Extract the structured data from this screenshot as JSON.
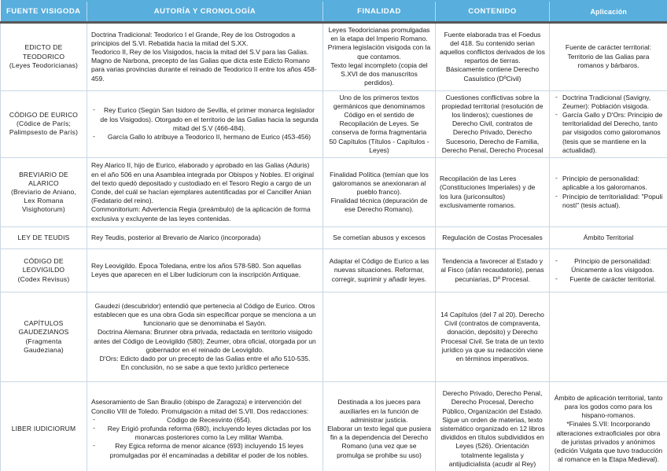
{
  "colors": {
    "header_bg": "#58aedc",
    "header_text": "#ffffff",
    "header_underline": "#58585a",
    "grid": "#c9d7e4"
  },
  "header": {
    "columns": [
      "FUENTE VISIGODA",
      "AUTORÍA Y CRONOLOGÍA",
      "FINALIDAD",
      "CONTENIDO",
      "Aplicación"
    ]
  },
  "rows": [
    {
      "id": "edicto-de-teodorico",
      "fuente": {
        "lines": [
          "EDICTO DE TEODORICO",
          "(Leyes Teodoricianas)"
        ]
      },
      "autoria": {
        "align": "left",
        "items": [
          {
            "text": "Doctrina Tradicional: Teodorico I el Grande, Rey de los Ostrogodos a principios del S.VI. Rebatida hacia la mitad del S.XX."
          },
          {
            "text": "Teodorico II, Rey de los Visigodos, hacia la mitad del S.V para las Galias."
          },
          {
            "text": "Magno de Narbona, precepto de las Galias que dicta este Edicto Romano para varias provincias durante el reinado de Teodorico II entre los años 458-459."
          }
        ]
      },
      "finalidad": {
        "align": "center",
        "items": [
          {
            "text": "Leyes Teodoricianas promulgadas en la etapa del Imperio Romano."
          },
          {
            "text": "Primera legislación visigoda con la que contamos."
          },
          {
            "text": "Texto legal incompleto (copia del S.XVI de dos manuscritos perdidos)."
          }
        ]
      },
      "contenido": {
        "align": "center",
        "items": [
          {
            "text": "Fuente elaborada tras el Foedus del 418. Su contenido serian aquellos conflictos derivados de los repartos de tierras."
          },
          {
            "text": "Básicamente contiene Derecho Casuístico (DºCivil)"
          }
        ]
      },
      "aplicacion": {
        "align": "center",
        "items": [
          {
            "text": "Fuente de carácter territorial: Territorio de las Galias para romanos y bárbaros."
          }
        ]
      }
    },
    {
      "id": "codigo-de-eurico",
      "fuente": {
        "lines": [
          "CÓDIGO DE EURICO",
          "(Códice de París; Palimpsesto de París)"
        ]
      },
      "autoria": {
        "align": "center",
        "items": [
          {
            "bullet": true,
            "text": "Rey Eurico (Según San Isidoro de Sevilla, el primer monarca legislador de los Visigodos). Otorgado en el territorio de las Galias hacia la segunda mitad del S.V (466-484)."
          },
          {
            "bullet": true,
            "text": "García Gallo lo atribuye a Teodorico II, hermano de Eurico (453-456)"
          }
        ]
      },
      "finalidad": {
        "align": "center",
        "items": [
          {
            "text": "Uno de los primeros textos germánicos que denominamos Código en el sentido de Recopilación de Leyes. Se conserva de forma fragmentaria 50 Capítulos (Títulos - Capítulos - Leyes)"
          }
        ]
      },
      "contenido": {
        "align": "center",
        "items": [
          {
            "text": "Cuestiones conflictivas sobre la propiedad territorial (resolución de los linderos); cuestiones de Derecho Civil, contratos de Derecho Privado, Derecho Sucesorio, Derecho de Familia, Derecho Penal, Derecho Procesal"
          }
        ]
      },
      "aplicacion": {
        "align": "left",
        "items": [
          {
            "bullet": true,
            "text": "Doctrina Tradicional (Savigny, Zeumer): Población visigoda."
          },
          {
            "bullet": true,
            "text": "García Gallo y D'Ors: Principio de territorialidad del Derecho, tanto par visigodos como galoromanos (tesis que se mantiene en la actualidad)."
          }
        ]
      }
    },
    {
      "id": "breviario-de-alarico",
      "fuente": {
        "lines": [
          "BREVIARIO DE ALARICO",
          "(Breviario de Aniano, Lex Romana Visighotorum)"
        ]
      },
      "autoria": {
        "align": "left",
        "items": [
          {
            "text": "Rey Alarico II, hijo de Eurico, elaborado y aprobado en las Galias (Aduris) en el año 506 en una Asamblea integrada por Obispos y Nobles. El original del texto quedó depositado y custodiado en el Tesoro Regio a cargo de un Conde, del cuál se hacían ejemplares autentificadas por el Canciller Anian (Fedatario del reino)."
          },
          {
            "text": "Commonitorium: Advertencia Regia (preámbulo) de la aplicación de forma exclusiva y excluyente de las leyes contenidas."
          }
        ]
      },
      "finalidad": {
        "align": "center",
        "items": [
          {
            "text": "Finalidad Política (temían que los galoromanos se anexionaran al pueblo franco)."
          },
          {
            "text": "Finalidad técnica (depuración de ese Derecho Romano)."
          }
        ]
      },
      "contenido": {
        "align": "left",
        "items": [
          {
            "text": "Recopilación de las Leres (Constituciones Imperiales) y de los Iura (juriconsultos) exclusivamente romanos."
          }
        ]
      },
      "aplicacion": {
        "align": "left",
        "items": [
          {
            "bullet": true,
            "text": "Principio de personalidad: aplicable a los galoromanos."
          },
          {
            "bullet": true,
            "text": "Principio de territorialidad: \"Populi nosti\" (tesis actual)."
          }
        ]
      }
    },
    {
      "id": "ley-de-teudis",
      "fuente": {
        "lines": [
          "LEY DE TEUDIS"
        ]
      },
      "autoria": {
        "align": "left",
        "items": [
          {
            "text": "Rey Teudis, posterior al Brevario de Alarico (incorporada)"
          }
        ]
      },
      "finalidad": {
        "align": "center",
        "items": [
          {
            "text": "Se cometían abusos y excesos"
          }
        ]
      },
      "contenido": {
        "align": "center",
        "items": [
          {
            "text": "Regulación de Costas Procesales"
          }
        ]
      },
      "aplicacion": {
        "align": "center",
        "items": [
          {
            "text": "Ámbito Territorial"
          }
        ]
      }
    },
    {
      "id": "codigo-de-leovigildo",
      "fuente": {
        "lines": [
          "CÓDIGO DE LEOVIGILDO",
          "(Codex Revisus)"
        ]
      },
      "autoria": {
        "align": "left",
        "items": [
          {
            "text": "Rey Leovigildo. Época Toledana, entre los años 578-580. Son aquellas Leyes que aparecen en el Liber Iudiciorum con la inscripción Antiquae."
          }
        ]
      },
      "finalidad": {
        "align": "center",
        "items": [
          {
            "text": "Adaptar el Código de Eurico a las nuevas situaciones. Reformar, corregir, suprimir y añadir leyes."
          }
        ]
      },
      "contenido": {
        "align": "center",
        "items": [
          {
            "text": "Tendencia a favorecer al Estado y al Fisco (afán recaudatorio), penas pecuniarias, Dº Procesal."
          }
        ]
      },
      "aplicacion": {
        "align": "center",
        "items": [
          {
            "bullet": true,
            "align": "center",
            "text": "Principio de personalidad: Únicamente a los visigodos."
          },
          {
            "bullet": true,
            "align": "center",
            "text": "Fuente de carácter territorial."
          }
        ]
      }
    },
    {
      "id": "capitulos-gaudezianos",
      "fuente": {
        "lines": [
          "CAPÍTULOS GAUDEZIANOS",
          "(Fragmenta Gaudeziana)"
        ]
      },
      "autoria": {
        "align": "center",
        "items": [
          {
            "text": "Gaudezi (descubridor) entendió que pertenecia al Código de Eurico. Otros establecen que es una obra Goda sin especificar porque se menciona a un funcionario que se denominaba el Sayón."
          },
          {
            "text": "Doctrina Alemana: Brunner obra privada, redactada en territorio visigodo antes del Código de Leovigildo (580); Zeumer, obra oficial, otorgada por un gobernador en el reinado de Leovigildo."
          },
          {
            "text": "D'Ors: Edicto dado por un precepto de las Galias entre el año 510-535."
          },
          {
            "text": "En conclusión, no se sabe a que texto jurídico pertenece"
          }
        ]
      },
      "finalidad": {
        "align": "center",
        "items": []
      },
      "contenido": {
        "align": "center",
        "items": [
          {
            "text": "14 Capítulos (del 7 al 20). Derecho Civil (contratos de compraventa, donación, depósito) y Derecho Procesal Civil. Se trata de un texto jurídico ya que su redacción viene en términos imperativos."
          }
        ]
      },
      "aplicacion": {
        "align": "center",
        "items": []
      }
    },
    {
      "id": "liber-iudiciorum",
      "fuente": {
        "lines": [
          "LIBER IUDICIORUM"
        ]
      },
      "autoria": {
        "align": "left",
        "items": [
          {
            "text": "Asesoramiento de San Braulio (obispo de Zaragoza) e intervención del Concilio VIII de Toledo. Promulgación a mitad del S.VII. Dos redacciones:"
          },
          {
            "bullet": true,
            "align": "center",
            "text": "Código de Recesvinto (654)."
          },
          {
            "bullet": true,
            "align": "center",
            "text": "Rey Erigió profunda reforma (680), incluyendo leyes dictadas por los monarcas posteriores como la Ley militar Wamba."
          },
          {
            "bullet": true,
            "align": "center",
            "text": "Rey Egica reforma de menor alcance (693) incluyendo 15 leyes promulgadas por él encaminadas a debilitar el poder de los nobles."
          }
        ]
      },
      "finalidad": {
        "align": "center",
        "items": [
          {
            "text": "Destinada a los jueces para auxiliarles en la función de administrar justicia."
          },
          {
            "text": "Elaborar un texto legal que pusiera fin a la dependencia del Derecho Romano (una vez que se promulga se prohibe su uso)"
          }
        ]
      },
      "contenido": {
        "align": "center",
        "items": [
          {
            "text": "Derecho Privado, Derecho Penal, Derecho Procesal, Derecho Público, Organización del Estado. Sigue un orden de materias, texto sistemático organizado en 12 libros divididos en títulos subdivididos en Leyes (526). Orientación totalmente legalista y antijudicialista (acudir al Rey)"
          }
        ]
      },
      "aplicacion": {
        "align": "center",
        "items": [
          {
            "text": "Ámbito de aplicación territorial, tanto para los godos como para los hispano-romanos."
          },
          {
            "text": "*Finales S.VII: Incorporando alteraciones extraoficiales por obra de juristas privados y anónimos (edición Vulgata que tuvo traducción al romance en la Etapa Medieval)."
          }
        ]
      }
    }
  ]
}
